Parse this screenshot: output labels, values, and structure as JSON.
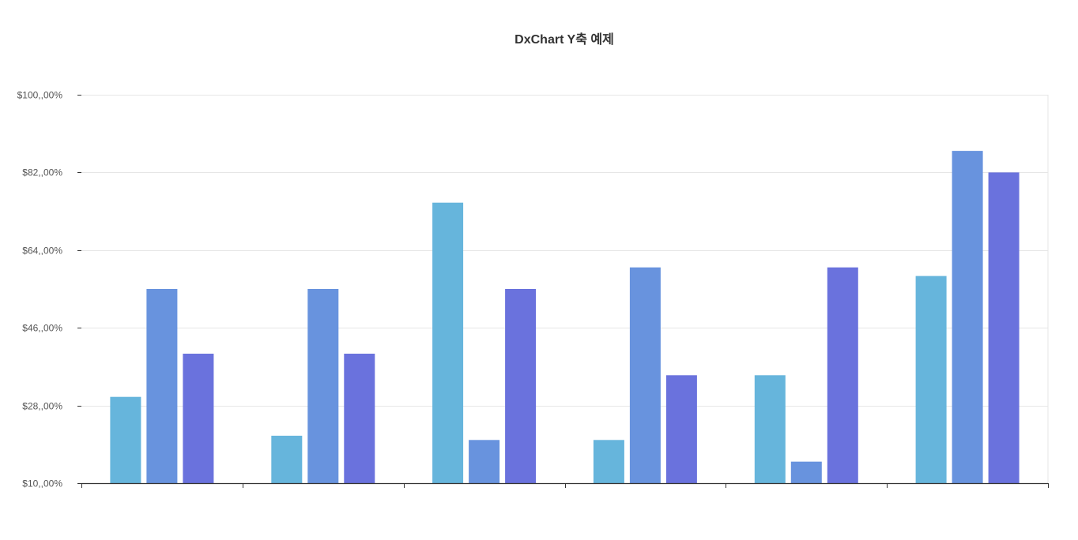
{
  "chart_data": {
    "type": "bar",
    "title": "DxChart Y축 예제",
    "xlabel": "",
    "ylabel": "",
    "categories": [
      "",
      "",
      "",
      "",
      "",
      ""
    ],
    "ylim": [
      10,
      100
    ],
    "yticks": [
      10,
      28,
      46,
      64,
      82,
      100
    ],
    "ytick_labels": [
      "$10,,00%",
      "$28,,00%",
      "$46,,00%",
      "$64,,00%",
      "$82,,00%",
      "$100,,00%"
    ],
    "grid": true,
    "legend": "none",
    "series": [
      {
        "color": "#66b5dc",
        "values": [
          30,
          21,
          75,
          20,
          35,
          58
        ]
      },
      {
        "color": "#6893de",
        "values": [
          55,
          55,
          20,
          60,
          15,
          87
        ]
      },
      {
        "color": "#6a72dd",
        "values": [
          40,
          40,
          55,
          35,
          60,
          82
        ]
      }
    ]
  }
}
